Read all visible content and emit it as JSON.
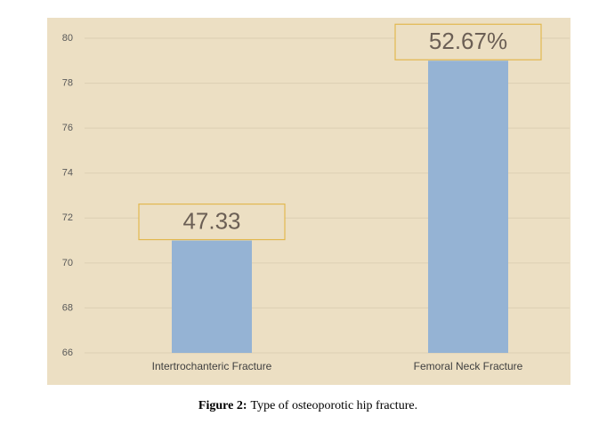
{
  "chart_data": {
    "type": "bar",
    "categories": [
      "Intertrochanteric Fracture",
      "Femoral Neck Fracture"
    ],
    "values": [
      71,
      79
    ],
    "annotations": [
      "47.33",
      "52.67%"
    ],
    "color": "#95b3d4",
    "ylim": [
      66,
      80
    ],
    "yticks": [
      66,
      68,
      70,
      72,
      74,
      76,
      78,
      80
    ],
    "grid": true
  },
  "caption": {
    "label": "Figure 2:",
    "text": "Type of osteoporotic hip fracture."
  }
}
